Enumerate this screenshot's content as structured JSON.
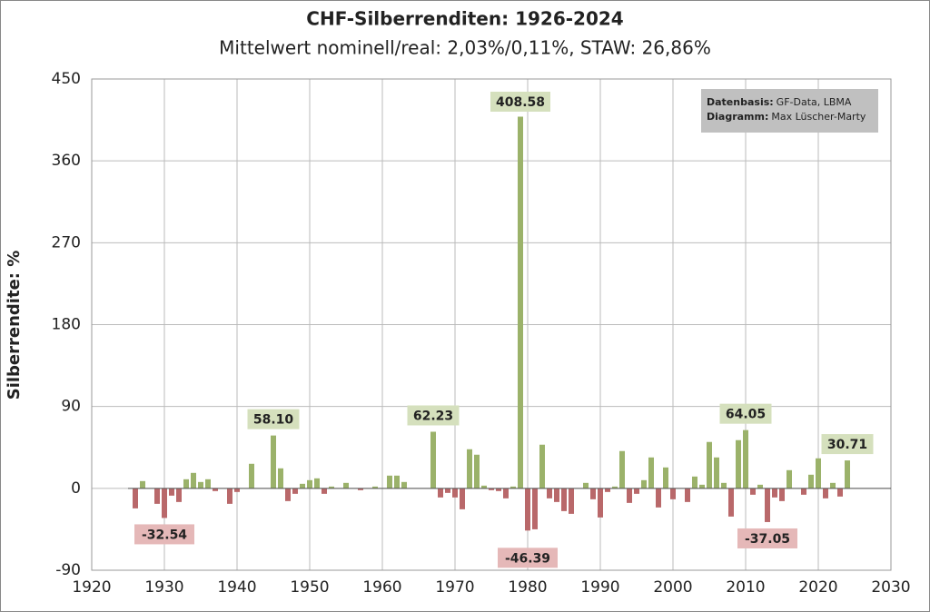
{
  "chart_data": {
    "type": "bar",
    "title": "CHF-Silberrenditen:  1926-2024",
    "subtitle": "Mittelwert nominell/real: 2,03%/0,11%, STAW: 26,86%",
    "y_label": "Silberrendite: %",
    "annotations": [
      {
        "label": "Datenbasis:",
        "text": "GF-Data, LBMA"
      },
      {
        "label": "Diagramm:",
        "text": "Max Lüscher-Marty"
      }
    ],
    "colors": {
      "positive": "#9bb26a",
      "negative": "#b9686a",
      "positive_label": "#d5e0bd",
      "negative_label": "#e5b8b8"
    },
    "x": [
      1926,
      1927,
      1928,
      1929,
      1930,
      1931,
      1932,
      1933,
      1934,
      1935,
      1936,
      1937,
      1938,
      1939,
      1940,
      1941,
      1942,
      1943,
      1944,
      1945,
      1946,
      1947,
      1948,
      1949,
      1950,
      1951,
      1952,
      1953,
      1954,
      1955,
      1956,
      1957,
      1958,
      1959,
      1960,
      1961,
      1962,
      1963,
      1964,
      1965,
      1966,
      1967,
      1968,
      1969,
      1970,
      1971,
      1972,
      1973,
      1974,
      1975,
      1976,
      1977,
      1978,
      1979,
      1980,
      1981,
      1982,
      1983,
      1984,
      1985,
      1986,
      1987,
      1988,
      1989,
      1990,
      1991,
      1992,
      1993,
      1994,
      1995,
      1996,
      1997,
      1998,
      1999,
      2000,
      2001,
      2002,
      2003,
      2004,
      2005,
      2006,
      2007,
      2008,
      2009,
      2010,
      2011,
      2012,
      2013,
      2014,
      2015,
      2016,
      2017,
      2018,
      2019,
      2020,
      2021,
      2022,
      2023,
      2024
    ],
    "values": [
      -22,
      8,
      0,
      -17,
      -32.54,
      -8,
      -15,
      10,
      17,
      7,
      10,
      -3,
      0,
      -17,
      -4,
      0,
      27,
      0,
      0,
      58.1,
      22,
      -14,
      -6,
      5,
      9,
      11,
      -6,
      2,
      0,
      6,
      0,
      -2,
      0,
      2,
      0,
      14,
      14,
      7,
      0,
      0,
      0,
      62.23,
      -10,
      -5,
      -10,
      -23,
      43,
      37,
      3,
      -2,
      -3,
      -11,
      2,
      408.58,
      -46.39,
      -45,
      48,
      -11,
      -15,
      -25,
      -28,
      0,
      6,
      -12,
      -32,
      -4,
      2,
      41,
      -16,
      -6,
      9,
      34,
      -21,
      23,
      -12,
      0,
      -15,
      13,
      4,
      51,
      34,
      6,
      -31,
      53,
      64.05,
      -7,
      4,
      -37.05,
      -10,
      -14,
      20,
      0,
      -7,
      15,
      33,
      -11,
      6,
      -9,
      30.71
    ],
    "value_labels": [
      null,
      null,
      null,
      null,
      "-32.54",
      null,
      null,
      null,
      null,
      null,
      null,
      null,
      null,
      null,
      null,
      null,
      null,
      null,
      null,
      "58.10",
      null,
      null,
      null,
      null,
      null,
      null,
      null,
      null,
      null,
      null,
      null,
      null,
      null,
      null,
      null,
      null,
      null,
      null,
      null,
      null,
      null,
      "62.23",
      null,
      null,
      null,
      null,
      null,
      null,
      null,
      null,
      null,
      null,
      null,
      "408.58",
      "-46.39",
      null,
      null,
      null,
      null,
      null,
      null,
      null,
      null,
      null,
      null,
      null,
      null,
      null,
      null,
      null,
      null,
      null,
      null,
      null,
      null,
      null,
      null,
      null,
      null,
      null,
      null,
      null,
      null,
      null,
      "64.05",
      null,
      null,
      "-37.05",
      null,
      null,
      null,
      null,
      null,
      null,
      null,
      null,
      null,
      null,
      "30.71"
    ],
    "xlim": [
      1920,
      2030
    ],
    "xticks": [
      1920,
      1930,
      1940,
      1950,
      1960,
      1970,
      1980,
      1990,
      2000,
      2010,
      2020,
      2030
    ],
    "ylim": [
      -90,
      450
    ],
    "yticks": [
      -90,
      0,
      90,
      180,
      270,
      360,
      450
    ],
    "grid": true
  }
}
